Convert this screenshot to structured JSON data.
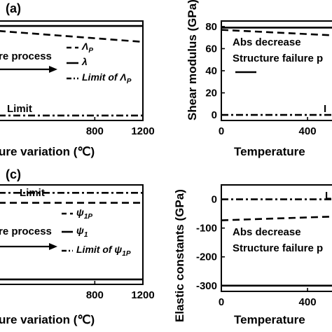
{
  "chart_data": [
    {
      "id": "a",
      "type": "line",
      "panel_label": "(a)",
      "xlabel": "ure variation (℃)",
      "ylabel": "",
      "xlim": [
        0,
        1200
      ],
      "ylim": [
        0,
        1
      ],
      "xticks": [
        "800",
        "1200"
      ],
      "yticks": [],
      "series": [
        {
          "name": "",
          "style": "solid",
          "x": [
            0,
            1200
          ],
          "y": [
            0.95,
            0.95
          ]
        },
        {
          "name": "Λ_P",
          "style": "dashed",
          "x": [
            0,
            1200
          ],
          "y": [
            0.9,
            0.79
          ]
        },
        {
          "name": "λ",
          "style": "solid",
          "x": [],
          "y": []
        },
        {
          "name": "Limit of Λ_P",
          "style": "dashdot",
          "x": [
            0,
            1200
          ],
          "y": [
            0.05,
            0.05
          ]
        }
      ],
      "annotations": [
        "re process",
        "Limit"
      ],
      "legend": [
        {
          "main": "Λ",
          "sub": "P",
          "style": "dashed"
        },
        {
          "main": "λ",
          "sub": "",
          "style": "solid"
        },
        {
          "main": "Limit of Λ",
          "sub": "P",
          "style": "dashdot"
        }
      ],
      "grid": false
    },
    {
      "id": "b",
      "type": "line",
      "panel_label": "",
      "xlabel": "Temperature",
      "ylabel": "Shear modulus (GPa)",
      "xlim": [
        0,
        520
      ],
      "ylim": [
        -5,
        85
      ],
      "xticks": [
        "0",
        "400"
      ],
      "yticks": [
        "0",
        "20",
        "40",
        "60",
        "80"
      ],
      "series": [
        {
          "name": "",
          "style": "solid",
          "x": [
            0,
            520
          ],
          "y": [
            79,
            79
          ]
        },
        {
          "name": "",
          "style": "dashed",
          "x": [
            0,
            520
          ],
          "y": [
            77,
            72
          ]
        },
        {
          "name": "",
          "style": "dashdot",
          "x": [
            0,
            520
          ],
          "y": [
            0,
            0
          ]
        }
      ],
      "annotations": [
        "Abs decrease",
        "Structure failure p",
        "I"
      ],
      "legend": [
        {
          "main": "",
          "sub": "",
          "style": "solid"
        }
      ],
      "grid": false
    },
    {
      "id": "c",
      "type": "line",
      "panel_label": "(c)",
      "xlabel": "ure variation (℃)",
      "ylabel": "",
      "xlim": [
        0,
        1200
      ],
      "ylim": [
        0,
        1
      ],
      "xticks": [
        "800",
        "1200"
      ],
      "yticks": [],
      "series": [
        {
          "name": "Limit",
          "style": "dashdot",
          "x": [
            0,
            1200
          ],
          "y": [
            0.92,
            0.92
          ]
        },
        {
          "name": "",
          "style": "dashed",
          "x": [
            0,
            1200
          ],
          "y": [
            0.82,
            0.82
          ]
        },
        {
          "name": "",
          "style": "solid",
          "x": [
            0,
            1200
          ],
          "y": [
            0.05,
            0.05
          ]
        }
      ],
      "annotations": [
        "Limit",
        "re process"
      ],
      "legend": [
        {
          "main": "ψ",
          "sub": "1P",
          "style": "dashed"
        },
        {
          "main": "ψ",
          "sub": "1",
          "style": "solid"
        },
        {
          "main": "Limit of ψ",
          "sub": "1P",
          "style": "dashdot"
        }
      ],
      "grid": false
    },
    {
      "id": "d",
      "type": "line",
      "panel_label": "",
      "xlabel": "Temperature",
      "ylabel": "Elastic constants (GPa)",
      "xlim": [
        0,
        520
      ],
      "ylim": [
        -320,
        50
      ],
      "xticks": [
        "0",
        "400"
      ],
      "yticks": [
        "0",
        "-100",
        "-200",
        "-300"
      ],
      "series": [
        {
          "name": "",
          "style": "dashdot",
          "x": [
            0,
            520
          ],
          "y": [
            0,
            0
          ]
        },
        {
          "name": "",
          "style": "dashed",
          "x": [
            0,
            520
          ],
          "y": [
            -73,
            -60
          ]
        },
        {
          "name": "",
          "style": "solid",
          "x": [
            0,
            520
          ],
          "y": [
            -300,
            -300
          ]
        }
      ],
      "annotations": [
        "L",
        "Abs decrease",
        "Structure failure p"
      ],
      "legend": [
        {
          "main": "",
          "sub": "",
          "style": "solid"
        }
      ],
      "grid": false
    }
  ]
}
